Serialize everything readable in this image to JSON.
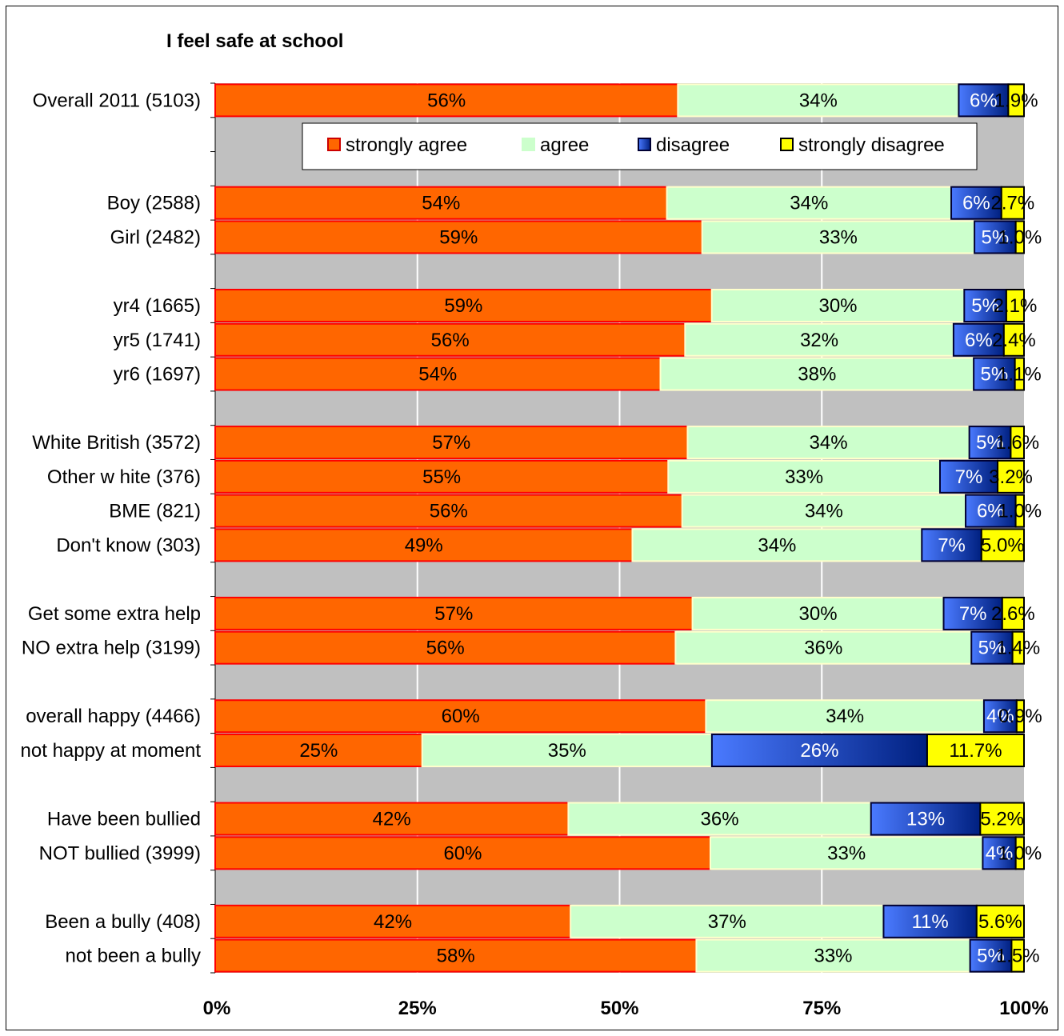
{
  "chart_data": {
    "type": "bar",
    "orientation": "horizontal",
    "stacked": "percent",
    "title": "I feel safe at school",
    "categories": [
      "Overall 2011 (5103)",
      "",
      "",
      "Boy (2588)",
      "Girl (2482)",
      "",
      "yr4 (1665)",
      "yr5 (1741)",
      "yr6 (1697)",
      "",
      "White British (3572)",
      "Other w hite (376)",
      "BME (821)",
      "Don't know  (303)",
      "",
      "Get some extra help",
      "NO extra help (3199)",
      "",
      "overall happy (4466)",
      "not happy at moment",
      "",
      "Have been bullied",
      "NOT bullied (3999)",
      "",
      "Been a bully (408)",
      "not been a bully"
    ],
    "series": [
      {
        "name": "strongly agree",
        "color": "#ff6600",
        "values": [
          56,
          null,
          null,
          54,
          59,
          null,
          59,
          56,
          54,
          null,
          57,
          55,
          56,
          49,
          null,
          57,
          56,
          null,
          60,
          25,
          null,
          42,
          60,
          null,
          42,
          58
        ],
        "labels": [
          "56%",
          "",
          "",
          "54%",
          "59%",
          "",
          "59%",
          "56%",
          "54%",
          "",
          "57%",
          "55%",
          "56%",
          "49%",
          "",
          "57%",
          "56%",
          "",
          "60%",
          "25%",
          "",
          "42%",
          "60%",
          "",
          "42%",
          "58%"
        ]
      },
      {
        "name": "agree",
        "color": "#ccffcc",
        "values": [
          34,
          null,
          null,
          34,
          33,
          null,
          30,
          32,
          38,
          null,
          34,
          33,
          34,
          34,
          null,
          30,
          36,
          null,
          34,
          35,
          null,
          36,
          33,
          null,
          37,
          33
        ],
        "labels": [
          "34%",
          "",
          "",
          "34%",
          "33%",
          "",
          "30%",
          "32%",
          "38%",
          "",
          "34%",
          "33%",
          "34%",
          "34%",
          "",
          "30%",
          "36%",
          "",
          "34%",
          "35%",
          "",
          "36%",
          "33%",
          "",
          "37%",
          "33%"
        ]
      },
      {
        "name": "disagree",
        "color": "#3366ff",
        "values": [
          6,
          null,
          null,
          6,
          5,
          null,
          5,
          6,
          5,
          null,
          5,
          7,
          6,
          7,
          null,
          7,
          5,
          null,
          4,
          26,
          null,
          13,
          4,
          null,
          11,
          5
        ],
        "labels": [
          "6%",
          "",
          "",
          "6%",
          "5%",
          "",
          "5%",
          "6%",
          "5%",
          "",
          "5%",
          "7%",
          "6%",
          "7%",
          "",
          "7%",
          "5%",
          "",
          "4%",
          "26%",
          "",
          "13%",
          "4%",
          "",
          "11%",
          "5%"
        ]
      },
      {
        "name": "strongly disagree",
        "color": "#ffff00",
        "values": [
          1.9,
          null,
          null,
          2.7,
          1.0,
          null,
          2.1,
          2.4,
          1.1,
          null,
          1.6,
          3.2,
          1.0,
          5.0,
          null,
          2.6,
          1.4,
          null,
          0.9,
          11.7,
          null,
          5.2,
          1.0,
          null,
          5.6,
          1.5
        ],
        "labels": [
          "1.9%",
          "",
          "",
          "2.7%",
          "1.0%",
          "",
          "2.1%",
          "2.4%",
          "1.1%",
          "",
          "1.6%",
          "3.2%",
          "1.0%",
          "5.0%",
          "",
          "2.6%",
          "1.4%",
          "",
          "0.9%",
          "11.7%",
          "",
          "5.2%",
          "1.0%",
          "",
          "5.6%",
          "1.5%"
        ]
      }
    ],
    "xticks": [
      "0%",
      "25%",
      "50%",
      "75%",
      "100%"
    ],
    "xlim": [
      0,
      100
    ],
    "grid": true,
    "legend_position": "top-inside",
    "plot_background": "#c0c0c0"
  }
}
